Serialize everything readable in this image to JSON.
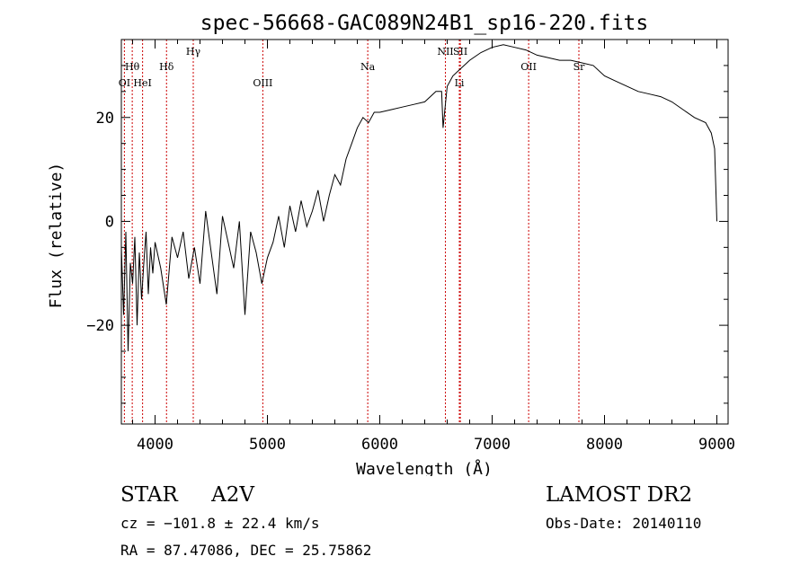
{
  "chart_data": {
    "type": "line",
    "title": "spec-56668-GAC089N24B1_sp16-220.fits",
    "xlabel": "Wavelength (Å)",
    "ylabel": "Flux (relative)",
    "xlim": [
      3700,
      9100
    ],
    "ylim": [
      -39,
      35
    ],
    "x_ticks": [
      4000,
      5000,
      6000,
      7000,
      8000,
      9000
    ],
    "y_ticks": [
      -20,
      0,
      20
    ],
    "x_minor_step": 200,
    "y_minor_step": 5,
    "grid": false,
    "line_color": "#000000",
    "marker_color": "#cc0000",
    "series": [
      {
        "x": [
          3700,
          3720,
          3740,
          3760,
          3780,
          3800,
          3820,
          3840,
          3860,
          3880,
          3900,
          3920,
          3940,
          3960,
          3980,
          4000,
          4050,
          4100,
          4150,
          4200,
          4250,
          4300,
          4350,
          4400,
          4450,
          4500,
          4550,
          4600,
          4650,
          4700,
          4750,
          4800,
          4850,
          4900,
          4950,
          5000,
          5050,
          5100,
          5150,
          5200,
          5250,
          5300,
          5350,
          5400,
          5450,
          5500,
          5550,
          5600,
          5650,
          5700,
          5750,
          5800,
          5850,
          5900,
          5950,
          6000,
          6100,
          6200,
          6300,
          6400,
          6500,
          6550,
          6563,
          6600,
          6650,
          6700,
          6750,
          6800,
          6900,
          7000,
          7100,
          7200,
          7300,
          7400,
          7500,
          7600,
          7700,
          7800,
          7900,
          8000,
          8100,
          8200,
          8300,
          8400,
          8500,
          8600,
          8700,
          8800,
          8900,
          8950,
          8980,
          9000
        ],
        "y": [
          -5,
          -18,
          -2,
          -25,
          -8,
          -12,
          -3,
          -20,
          -6,
          -15,
          -8,
          -2,
          -14,
          -5,
          -10,
          -4,
          -9,
          -16,
          -3,
          -7,
          -2,
          -11,
          -5,
          -12,
          2,
          -6,
          -14,
          1,
          -4,
          -9,
          0,
          -18,
          -2,
          -6,
          -12,
          -7,
          -4,
          1,
          -5,
          3,
          -2,
          4,
          -1,
          2,
          6,
          0,
          5,
          9,
          7,
          12,
          15,
          18,
          20,
          19,
          21,
          21,
          21.5,
          22,
          22.5,
          23,
          25,
          25,
          18,
          26,
          28,
          29,
          30,
          31,
          32.5,
          33.5,
          34,
          33.5,
          33,
          32,
          31.5,
          31,
          31,
          30.5,
          30,
          28,
          27,
          26,
          25,
          24.5,
          24,
          23,
          21.5,
          20,
          19,
          17,
          14,
          0
        ]
      }
    ],
    "lines": [
      {
        "name": "Hθ",
        "x": 3797,
        "row": 1
      },
      {
        "name": "OI",
        "x": 3727,
        "row": 2
      },
      {
        "name": "HeI",
        "x": 3889,
        "row": 2
      },
      {
        "name": "Hδ",
        "x": 4102,
        "row": 1
      },
      {
        "name": "Hγ",
        "x": 4340,
        "row": 0
      },
      {
        "name": "OIII",
        "x": 4959,
        "row": 2
      },
      {
        "name": "Na",
        "x": 5893,
        "row": 1
      },
      {
        "name": "NII",
        "x": 6584,
        "row": 0
      },
      {
        "name": "SII",
        "x": 6717,
        "row": 0
      },
      {
        "name": "Li",
        "x": 6708,
        "row": 2
      },
      {
        "name": "OII",
        "x": 7325,
        "row": 1
      },
      {
        "name": "Sr",
        "x": 7772,
        "row": 1
      }
    ]
  },
  "info": {
    "class": "STAR",
    "subclass": "A2V",
    "survey": "LAMOST DR2",
    "cz": "cz = −101.8 ± 22.4 km/s",
    "obs_date": "Obs-Date: 20140110",
    "coords": "RA =  87.47086, DEC =  25.75862"
  }
}
